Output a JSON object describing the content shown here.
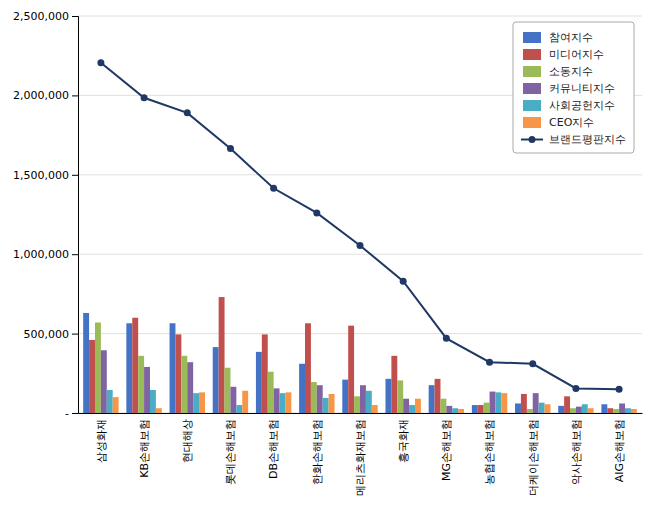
{
  "chart_data": {
    "type": "bar",
    "categories": [
      "삼성화재",
      "KB손해보험",
      "현대해상",
      "롯데손해보험",
      "DB손해보험",
      "한화손해보험",
      "메리츠화재보험",
      "흥국화재",
      "MG손해보험",
      "농협손해보험",
      "더케이손해보험",
      "악사손해보험",
      "AIG손해보험"
    ],
    "series": [
      {
        "name": "참여지수",
        "color": "#4472C4",
        "values": [
          630000,
          565000,
          565000,
          415000,
          385000,
          310000,
          210000,
          215000,
          175000,
          50000,
          60000,
          45000,
          55000
        ]
      },
      {
        "name": "미디어지수",
        "color": "#C0504D",
        "values": [
          460000,
          600000,
          495000,
          730000,
          495000,
          565000,
          550000,
          360000,
          215000,
          50000,
          120000,
          105000,
          30000
        ]
      },
      {
        "name": "소동지수",
        "color": "#9BBB59",
        "values": [
          570000,
          360000,
          360000,
          285000,
          260000,
          195000,
          105000,
          205000,
          90000,
          65000,
          25000,
          30000,
          25000
        ]
      },
      {
        "name": "커뮤니티지수",
        "color": "#8064A2",
        "values": [
          395000,
          290000,
          320000,
          165000,
          155000,
          175000,
          175000,
          90000,
          45000,
          135000,
          125000,
          40000,
          60000
        ]
      },
      {
        "name": "사회공헌지수",
        "color": "#4BACC6",
        "values": [
          145000,
          145000,
          125000,
          50000,
          125000,
          95000,
          140000,
          50000,
          30000,
          130000,
          65000,
          55000,
          30000
        ]
      },
      {
        "name": "CEO지수",
        "color": "#F79646",
        "values": [
          100000,
          30000,
          130000,
          140000,
          130000,
          120000,
          50000,
          90000,
          25000,
          125000,
          55000,
          30000,
          25000
        ]
      },
      {
        "name": "브랜드평판지수",
        "type": "line",
        "color": "#1F3864",
        "marker": "circle",
        "values": [
          2205000,
          1985000,
          1890000,
          1665000,
          1415000,
          1260000,
          1055000,
          830000,
          470000,
          320000,
          310000,
          155000,
          150000
        ]
      }
    ],
    "ylim": [
      0,
      2500000
    ],
    "yticks": [
      {
        "value": 0,
        "label": "-"
      },
      {
        "value": 500000,
        "label": "500,000"
      },
      {
        "value": 1000000,
        "label": "1,000,000"
      },
      {
        "value": 1500000,
        "label": "1,500,000"
      },
      {
        "value": 2000000,
        "label": "2,000,000"
      },
      {
        "value": 2500000,
        "label": "2,500,000"
      }
    ],
    "grid": true,
    "legend": "upper right"
  }
}
